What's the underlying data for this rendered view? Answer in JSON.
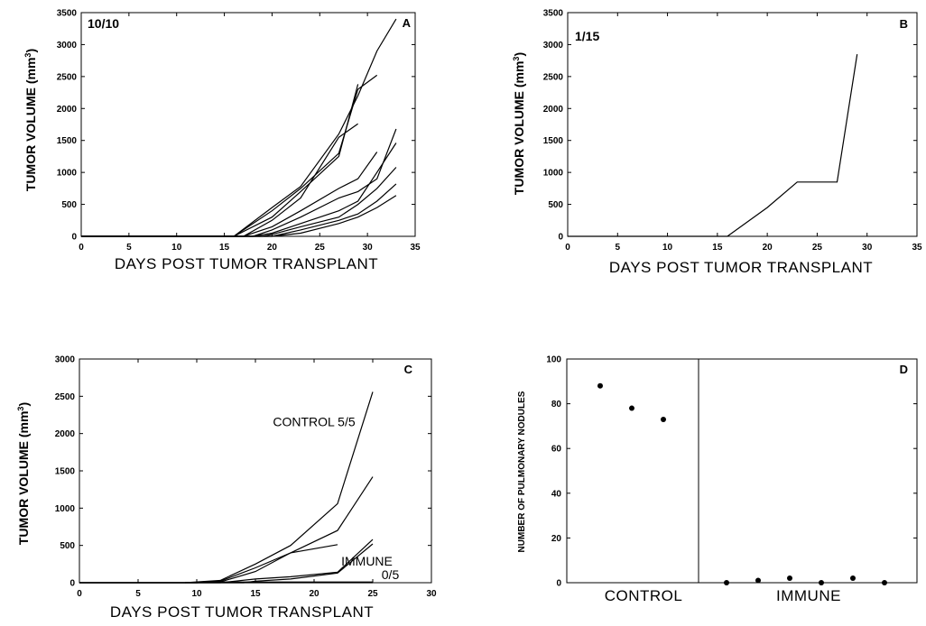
{
  "chart_data": [
    {
      "id": "A",
      "type": "line",
      "panel_label": "A",
      "ratio_label": "10/10",
      "xlabel": "DAYS POST TUMOR TRANSPLANT",
      "ylabel": "TUMOR VOLUME (mm3)",
      "xlim": [
        0,
        35
      ],
      "ylim": [
        0,
        3500
      ],
      "xticks": [
        0,
        5,
        10,
        15,
        20,
        25,
        30,
        35
      ],
      "yticks": [
        0,
        500,
        1000,
        1500,
        2000,
        2500,
        3000,
        3500
      ],
      "series": [
        {
          "x": [
            0,
            16,
            20,
            23,
            27,
            29,
            31,
            33
          ],
          "y": [
            0,
            0,
            450,
            780,
            1600,
            2200,
            2900,
            3400
          ]
        },
        {
          "x": [
            0,
            16,
            20,
            23,
            27,
            29,
            31
          ],
          "y": [
            0,
            0,
            400,
            750,
            1300,
            2300,
            2520
          ]
        },
        {
          "x": [
            0,
            16,
            20,
            23,
            27,
            29
          ],
          "y": [
            0,
            0,
            300,
            700,
            1250,
            2380
          ]
        },
        {
          "x": [
            0,
            17,
            20,
            23,
            27,
            29
          ],
          "y": [
            0,
            0,
            250,
            600,
            1550,
            1760
          ]
        },
        {
          "x": [
            0,
            17,
            20,
            23,
            27,
            29,
            31
          ],
          "y": [
            0,
            0,
            150,
            400,
            750,
            900,
            1320
          ]
        },
        {
          "x": [
            0,
            18,
            20,
            23,
            27,
            29,
            31,
            33
          ],
          "y": [
            0,
            0,
            100,
            300,
            600,
            700,
            900,
            1680
          ]
        },
        {
          "x": [
            0,
            18,
            20,
            23,
            27,
            29,
            31,
            33
          ],
          "y": [
            0,
            0,
            50,
            200,
            400,
            550,
            1000,
            1460
          ]
        },
        {
          "x": [
            0,
            19,
            20,
            23,
            27,
            29,
            31,
            33
          ],
          "y": [
            0,
            0,
            30,
            150,
            300,
            500,
            750,
            1080
          ]
        },
        {
          "x": [
            0,
            19,
            20,
            23,
            27,
            29,
            31,
            33
          ],
          "y": [
            0,
            0,
            0,
            100,
            250,
            350,
            550,
            820
          ]
        },
        {
          "x": [
            0,
            20,
            23,
            27,
            29,
            31,
            33
          ],
          "y": [
            0,
            0,
            50,
            200,
            300,
            450,
            640
          ]
        }
      ]
    },
    {
      "id": "B",
      "type": "line",
      "panel_label": "B",
      "ratio_label": "1/15",
      "xlabel": "DAYS POST TUMOR TRANSPLANT",
      "ylabel": "TUMOR VOLUME (mm3)",
      "xlim": [
        0,
        35
      ],
      "ylim": [
        0,
        3500
      ],
      "xticks": [
        0,
        5,
        10,
        15,
        20,
        25,
        30,
        35
      ],
      "yticks": [
        0,
        500,
        1000,
        1500,
        2000,
        2500,
        3000,
        3500
      ],
      "series": [
        {
          "x": [
            0,
            16,
            20,
            23,
            27,
            29
          ],
          "y": [
            0,
            0,
            450,
            850,
            850,
            2850
          ]
        }
      ]
    },
    {
      "id": "C",
      "type": "line",
      "panel_label": "C",
      "xlabel": "DAYS POST TUMOR TRANSPLANT",
      "ylabel": "TUMOR VOLUME (mm3)",
      "xlim": [
        0,
        30
      ],
      "ylim": [
        0,
        3000
      ],
      "xticks": [
        0,
        5,
        10,
        15,
        20,
        25,
        30
      ],
      "yticks": [
        0,
        500,
        1000,
        1500,
        2000,
        2500,
        3000
      ],
      "annotations": [
        {
          "text": "CONTROL 5/5",
          "x": 20,
          "y": 2100
        },
        {
          "text": "IMMUNE",
          "x": 24.5,
          "y": 230
        },
        {
          "text": "0/5",
          "x": 26.5,
          "y": 50
        }
      ],
      "series": [
        {
          "x": [
            0,
            9,
            12,
            15,
            18,
            22,
            25
          ],
          "y": [
            0,
            0,
            30,
            250,
            500,
            1060,
            2560
          ]
        },
        {
          "x": [
            0,
            10,
            12,
            15,
            18,
            22,
            25
          ],
          "y": [
            0,
            0,
            20,
            200,
            400,
            700,
            1420
          ]
        },
        {
          "x": [
            0,
            10,
            12,
            15,
            18,
            22
          ],
          "y": [
            0,
            0,
            10,
            150,
            400,
            510
          ]
        },
        {
          "x": [
            0,
            12,
            15,
            18,
            22,
            25
          ],
          "y": [
            0,
            0,
            50,
            80,
            140,
            580
          ]
        },
        {
          "x": [
            0,
            14,
            15,
            18,
            22,
            25
          ],
          "y": [
            0,
            0,
            20,
            50,
            130,
            520
          ]
        },
        {
          "x": [
            9,
            25
          ],
          "y": [
            0,
            0
          ]
        },
        {
          "x": [
            9,
            25
          ],
          "y": [
            5,
            5
          ]
        },
        {
          "x": [
            10,
            25
          ],
          "y": [
            10,
            10
          ]
        }
      ]
    },
    {
      "id": "D",
      "type": "scatter",
      "panel_label": "D",
      "ylabel": "NUMBER OF PULMONARY NODULES",
      "ylim": [
        0,
        100
      ],
      "yticks": [
        0,
        20,
        40,
        60,
        80,
        100
      ],
      "groups": [
        {
          "label": "CONTROL",
          "values": [
            88,
            78,
            73
          ]
        },
        {
          "label": "IMMUNE",
          "values": [
            0,
            1,
            2,
            0,
            2,
            0
          ]
        }
      ]
    }
  ]
}
